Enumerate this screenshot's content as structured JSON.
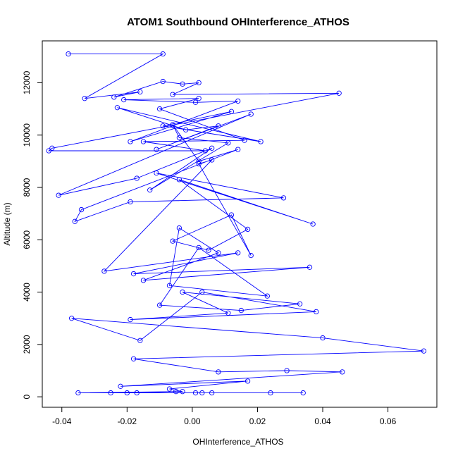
{
  "chart_data": {
    "type": "line",
    "title": "ATOM1 Southbound OHInterference_ATHOS",
    "xlabel": "OHInterference_ATHOS",
    "ylabel": "Altitude (m)",
    "xlim": [
      -0.046,
      0.075
    ],
    "ylim": [
      -400,
      13600
    ],
    "x_ticks": [
      -0.04,
      -0.02,
      0.0,
      0.02,
      0.04,
      0.06
    ],
    "x_tick_labels": [
      "-0.04",
      "-0.02",
      "0.00",
      "0.02",
      "0.04",
      "0.06"
    ],
    "y_ticks": [
      0,
      2000,
      4000,
      6000,
      8000,
      10000,
      12000
    ],
    "y_tick_labels": [
      "0",
      "2000",
      "4000",
      "6000",
      "8000",
      "10000",
      "12000"
    ],
    "grid": false,
    "legend": "none",
    "series_color": "#0000ff",
    "markers": "open-circle",
    "series": [
      {
        "x": [
          -0.038,
          -0.009,
          -0.033,
          -0.016,
          -0.024,
          -0.009,
          -0.003,
          0.002,
          -0.006,
          0.045,
          -0.043,
          -0.044,
          0.004,
          -0.015,
          0.016,
          -0.01,
          0.002,
          -0.021,
          0.001,
          0.014,
          -0.019,
          0.012,
          -0.009,
          0.021,
          -0.023,
          -0.002,
          0.008,
          -0.011,
          0.018,
          -0.041,
          -0.017,
          0.006,
          -0.013,
          0.011,
          -0.004,
          -0.006,
          0.002,
          0.014,
          -0.034,
          -0.036,
          -0.019,
          0.028,
          -0.011,
          0.037,
          -0.004,
          0.017,
          0.005,
          -0.006,
          0.012,
          0.018,
          0.002,
          0.006,
          -0.027,
          0.014,
          -0.018,
          0.036,
          -0.015,
          0.008,
          -0.004,
          -0.007,
          0.023,
          0.002,
          -0.01,
          0.015,
          0.033,
          -0.003,
          0.011,
          -0.019,
          0.038,
          0.003,
          -0.016,
          -0.037,
          0.04,
          0.071,
          -0.018,
          0.008,
          0.029,
          0.046,
          -0.022,
          0.017,
          -0.007,
          -0.003,
          -0.035,
          -0.025,
          -0.017,
          -0.005,
          -0.02,
          0.001,
          0.003,
          0.006,
          0.024,
          0.034
        ],
        "y": [
          13100,
          13100,
          11400,
          11650,
          11450,
          12050,
          11950,
          12000,
          11550,
          11600,
          9500,
          9400,
          9400,
          9750,
          9800,
          11000,
          11400,
          11350,
          11250,
          11300,
          9750,
          10900,
          10350,
          9750,
          11050,
          10200,
          10350,
          9450,
          10800,
          7700,
          8350,
          9500,
          7900,
          9700,
          9900,
          10400,
          9000,
          9450,
          7150,
          6700,
          7450,
          7600,
          8550,
          6600,
          8300,
          6400,
          5600,
          5950,
          6950,
          5400,
          8900,
          9050,
          4800,
          5500,
          4700,
          4950,
          4450,
          5500,
          6450,
          4250,
          3850,
          5700,
          3500,
          3300,
          3550,
          4000,
          3200,
          2950,
          3250,
          4000,
          2150,
          3000,
          2250,
          1750,
          1450,
          950,
          1000,
          950,
          400,
          600,
          300,
          200,
          150,
          150,
          150,
          200,
          150,
          150,
          150,
          150,
          150,
          150
        ]
      }
    ]
  }
}
